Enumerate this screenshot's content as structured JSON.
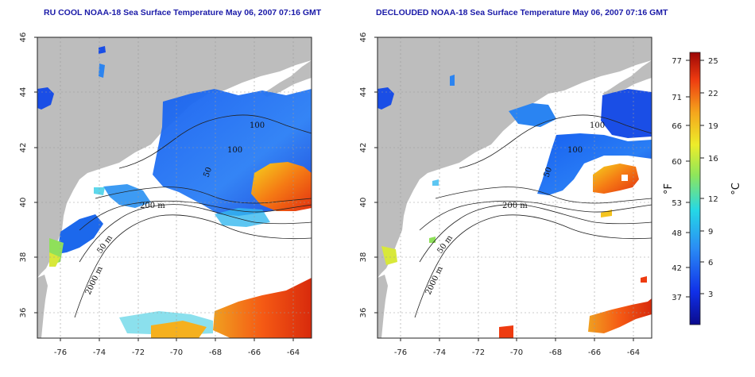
{
  "maps": [
    {
      "name": "ru-cool",
      "title": "RU COOL NOAA-18 Sea Surface Temperature May 06, 2007 07:16 GMT",
      "x_ticks": [
        "-76",
        "-74",
        "-72",
        "-70",
        "-68",
        "-66",
        "-64"
      ],
      "y_ticks": [
        "46",
        "44",
        "42",
        "40",
        "38",
        "36"
      ],
      "contour_labels": [
        "100",
        "100",
        "50",
        "200 m",
        "50 m",
        "2000 m"
      ]
    },
    {
      "name": "declouded",
      "title": "DECLOUDED NOAA-18 Sea Surface Temperature May 06, 2007 07:16 GMT",
      "x_ticks": [
        "-76",
        "-74",
        "-72",
        "-70",
        "-68",
        "-66",
        "-64"
      ],
      "y_ticks": [
        "46",
        "44",
        "42",
        "40",
        "38",
        "36"
      ],
      "contour_labels": [
        "100",
        "100",
        "50",
        "200 m",
        "50 m",
        "2000 m"
      ]
    }
  ],
  "colorbar": {
    "fahrenheit_label": "°F",
    "celsius_label": "°C",
    "fahrenheit_ticks": [
      "77",
      "71",
      "66",
      "60",
      "53",
      "48",
      "42",
      "37"
    ],
    "celsius_ticks": [
      "25",
      "22",
      "19",
      "16",
      "12",
      "9",
      "6",
      "3"
    ]
  },
  "colors": {
    "land": "#bdbdbd",
    "title": "#1a1aa8",
    "cold": "#1a5ef0",
    "warm": "#f25a14"
  }
}
